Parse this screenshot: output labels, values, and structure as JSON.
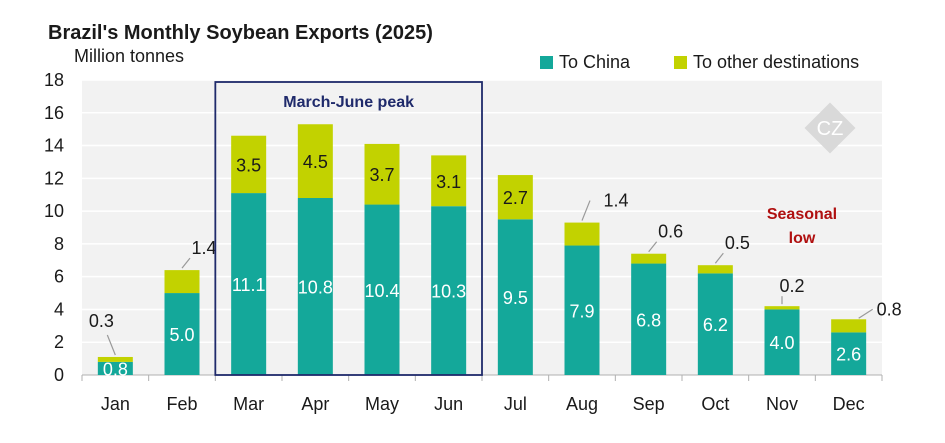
{
  "chart_data": {
    "type": "bar",
    "stacked": true,
    "title": "Brazil's Monthly Soybean Exports (2025)",
    "ylabel": "Million tonnes",
    "xlabel": "",
    "ylim": [
      0,
      18
    ],
    "yticks": [
      0,
      2,
      4,
      6,
      8,
      10,
      12,
      14,
      16,
      18
    ],
    "categories": [
      "Jan",
      "Feb",
      "Mar",
      "Apr",
      "May",
      "Jun",
      "Jul",
      "Aug",
      "Sep",
      "Oct",
      "Nov",
      "Dec"
    ],
    "series": [
      {
        "name": "To China",
        "color": "#14a89a",
        "values": [
          0.8,
          5.0,
          11.1,
          10.8,
          10.4,
          10.3,
          9.5,
          7.9,
          6.8,
          6.2,
          4.0,
          2.6
        ],
        "labels": [
          "0.8",
          "5.0",
          "11.1",
          "10.8",
          "10.4",
          "10.3",
          "9.5",
          "7.9",
          "6.8",
          "6.2",
          "4.0",
          "2.6"
        ]
      },
      {
        "name": "To other destinations",
        "color": "#c2d200",
        "values": [
          0.3,
          1.4,
          3.5,
          4.5,
          3.7,
          3.1,
          2.7,
          1.4,
          0.6,
          0.5,
          0.2,
          0.8
        ],
        "labels": [
          "0.3",
          "1.4",
          "3.5",
          "4.5",
          "3.7",
          "3.1",
          "2.7",
          "1.4",
          "0.6",
          "0.5",
          "0.2",
          "0.8"
        ]
      }
    ],
    "annotations": {
      "peak_box": {
        "label": "March-June peak",
        "from": "Mar",
        "to": "Jun"
      },
      "seasonal_low": {
        "line1": "Seasonal",
        "line2": "low"
      }
    },
    "legend_position": "top-right",
    "grid": true
  }
}
